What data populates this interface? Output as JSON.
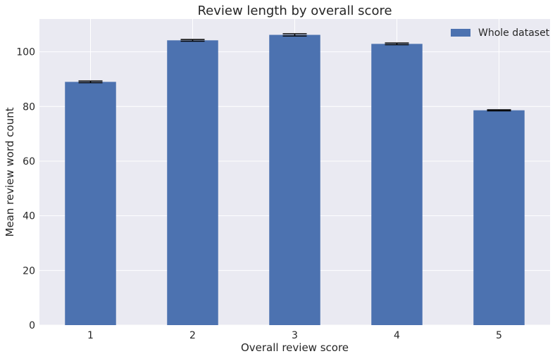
{
  "chart_data": {
    "type": "bar",
    "title": "Review length by overall score",
    "xlabel": "Overall review score",
    "ylabel": "Mean review word count",
    "categories": [
      "1",
      "2",
      "3",
      "4",
      "5"
    ],
    "series": [
      {
        "name": "Whole dataset",
        "values": [
          89.0,
          104.2,
          106.2,
          102.9,
          78.6
        ],
        "errors": [
          0.3,
          0.3,
          0.4,
          0.3,
          0.2
        ],
        "color": "#4c72b0"
      }
    ],
    "ylim": [
      0,
      112
    ],
    "yticks": [
      0,
      20,
      40,
      60,
      80,
      100
    ],
    "grid": true,
    "legend": "top-right",
    "style": {
      "plot_background": "#eaeaf2",
      "grid_color": "#ffffff",
      "errorbar_color": "#000000"
    }
  }
}
